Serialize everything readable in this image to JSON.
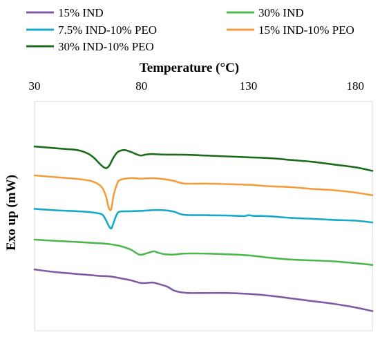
{
  "chart_data": {
    "type": "line",
    "title": "",
    "xlabel": "Temperature (°C)",
    "ylabel": "Exo up (mW)",
    "x_axis_position": "top",
    "xlim": [
      30,
      188
    ],
    "xticks": [
      30,
      80,
      130,
      180
    ],
    "y_ticks_shown": false,
    "ylim": [
      0,
      100
    ],
    "grid": false,
    "legend_position": "top",
    "series": [
      {
        "name": "15% IND",
        "color": "#7f5ba6",
        "points": [
          [
            30,
            81
          ],
          [
            40,
            82.5
          ],
          [
            50,
            83.5
          ],
          [
            60,
            84.5
          ],
          [
            65,
            84.8
          ],
          [
            70,
            85.8
          ],
          [
            75,
            87
          ],
          [
            80,
            88.5
          ],
          [
            85,
            88.2
          ],
          [
            88,
            89
          ],
          [
            92,
            90.5
          ],
          [
            95,
            92.5
          ],
          [
            98,
            93.5
          ],
          [
            102,
            94
          ],
          [
            110,
            94
          ],
          [
            120,
            94
          ],
          [
            130,
            94.5
          ],
          [
            140,
            95.5
          ],
          [
            150,
            97
          ],
          [
            160,
            98.5
          ],
          [
            170,
            100
          ],
          [
            180,
            102
          ],
          [
            188,
            104
          ]
        ]
      },
      {
        "name": "30% IND",
        "color": "#4cb74c",
        "points": [
          [
            30,
            64.5
          ],
          [
            40,
            65.2
          ],
          [
            50,
            65.8
          ],
          [
            60,
            66.5
          ],
          [
            65,
            67
          ],
          [
            70,
            68
          ],
          [
            75,
            70
          ],
          [
            79,
            72.8
          ],
          [
            82,
            72.2
          ],
          [
            84,
            71.5
          ],
          [
            86,
            71
          ],
          [
            88,
            71.8
          ],
          [
            91,
            72.6
          ],
          [
            95,
            72.8
          ],
          [
            100,
            72.2
          ],
          [
            110,
            72.2
          ],
          [
            120,
            72.6
          ],
          [
            130,
            73.2
          ],
          [
            140,
            74.5
          ],
          [
            150,
            75.5
          ],
          [
            160,
            76
          ],
          [
            170,
            76.5
          ],
          [
            180,
            77.5
          ],
          [
            188,
            78.5
          ]
        ]
      },
      {
        "name": "7.5% IND-10% PEO",
        "color": "#17a9c8",
        "points": [
          [
            30,
            47.5
          ],
          [
            40,
            48.3
          ],
          [
            50,
            48.8
          ],
          [
            55,
            49.2
          ],
          [
            60,
            50
          ],
          [
            62,
            51
          ],
          [
            63.5,
            54
          ],
          [
            65,
            57.5
          ],
          [
            66,
            58.2
          ],
          [
            67,
            55
          ],
          [
            68.5,
            50.5
          ],
          [
            70,
            49
          ],
          [
            75,
            48.8
          ],
          [
            80,
            48.6
          ],
          [
            85,
            48.2
          ],
          [
            90,
            48.2
          ],
          [
            95,
            49
          ],
          [
            100,
            50.8
          ],
          [
            110,
            51
          ],
          [
            120,
            51.2
          ],
          [
            128,
            51.5
          ],
          [
            130,
            51
          ],
          [
            132,
            51.3
          ],
          [
            140,
            51.6
          ],
          [
            150,
            52.5
          ],
          [
            160,
            53
          ],
          [
            170,
            53.6
          ],
          [
            180,
            54
          ],
          [
            188,
            55
          ]
        ]
      },
      {
        "name": "15% IND-10% PEO",
        "color": "#f59d3d",
        "points": [
          [
            30,
            29
          ],
          [
            40,
            30
          ],
          [
            50,
            31
          ],
          [
            56,
            32
          ],
          [
            60,
            34
          ],
          [
            62,
            36.5
          ],
          [
            63.5,
            41
          ],
          [
            64.5,
            46
          ],
          [
            65.3,
            48.2
          ],
          [
            66,
            47
          ],
          [
            67,
            40
          ],
          [
            68.5,
            34
          ],
          [
            70,
            31.5
          ],
          [
            75,
            30.5
          ],
          [
            80,
            30.8
          ],
          [
            85,
            30.5
          ],
          [
            90,
            31
          ],
          [
            95,
            32
          ],
          [
            100,
            33.5
          ],
          [
            110,
            33.5
          ],
          [
            120,
            33.8
          ],
          [
            130,
            34.2
          ],
          [
            140,
            35
          ],
          [
            150,
            35.5
          ],
          [
            160,
            36.5
          ],
          [
            170,
            37.2
          ],
          [
            180,
            38.5
          ],
          [
            188,
            40
          ]
        ]
      },
      {
        "name": "30% IND-10% PEO",
        "color": "#1c6b1c",
        "points": [
          [
            30,
            13
          ],
          [
            40,
            14
          ],
          [
            50,
            15
          ],
          [
            55,
            17
          ],
          [
            58,
            19.5
          ],
          [
            60,
            22
          ],
          [
            62,
            24.2
          ],
          [
            63.5,
            25
          ],
          [
            65,
            23.5
          ],
          [
            67,
            19
          ],
          [
            69,
            16
          ],
          [
            72,
            15
          ],
          [
            75,
            16
          ],
          [
            78,
            17.5
          ],
          [
            80,
            18
          ],
          [
            82,
            17.5
          ],
          [
            85,
            17.2
          ],
          [
            90,
            17.5
          ],
          [
            100,
            17.6
          ],
          [
            110,
            18
          ],
          [
            120,
            18.5
          ],
          [
            130,
            19
          ],
          [
            140,
            19.5
          ],
          [
            150,
            20.5
          ],
          [
            160,
            21.5
          ],
          [
            170,
            23
          ],
          [
            180,
            24.5
          ],
          [
            188,
            26.5
          ]
        ]
      }
    ]
  }
}
